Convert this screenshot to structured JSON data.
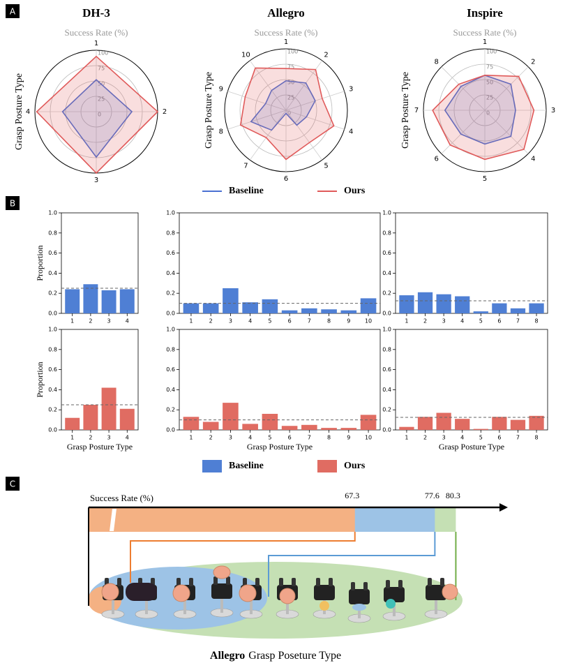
{
  "panel_labels": [
    "A",
    "B",
    "C"
  ],
  "legends": [
    [
      {
        "name": "Baseline",
        "color": "#4a70d2"
      },
      {
        "name": "Ours",
        "color": "#e05a5a"
      }
    ],
    [
      {
        "name": "Baseline",
        "color": "#4f7fd4"
      },
      {
        "name": "Ours",
        "color": "#e06c62"
      }
    ]
  ],
  "chart_data": [
    {
      "type": "radar",
      "title": "DH-3",
      "subtitle": "Success Rate (%)",
      "ylabel": "Grasp Posture Type",
      "categories": [
        "1",
        "2",
        "3",
        "4"
      ],
      "rlim": [
        0,
        100
      ],
      "rticks": [
        0,
        25,
        50,
        75,
        100
      ],
      "series": [
        {
          "color": "#4a70d2",
          "values": [
            52,
            58,
            74,
            55
          ]
        },
        {
          "color": "#e05a5a",
          "values": [
            90,
            100,
            100,
            97
          ]
        }
      ]
    },
    {
      "type": "radar",
      "title": "Allegro",
      "subtitle": "Success Rate (%)",
      "ylabel": "Grasp Posture Type",
      "categories": [
        "1",
        "2",
        "3",
        "4",
        "5",
        "6",
        "7",
        "8",
        "9",
        "10"
      ],
      "rlim": [
        0,
        100
      ],
      "rticks": [
        0,
        25,
        50,
        75,
        100
      ],
      "series": [
        {
          "color": "#4a70d2",
          "values": [
            48,
            55,
            50,
            35,
            30,
            5,
            40,
            60,
            35,
            40
          ]
        },
        {
          "color": "#e05a5a",
          "values": [
            68,
            82,
            62,
            82,
            65,
            80,
            55,
            78,
            70,
            85
          ]
        }
      ]
    },
    {
      "type": "radar",
      "title": "Inspire",
      "subtitle": "Success Rate (%)",
      "ylabel": "Grasp Posture Type",
      "categories": [
        "1",
        "2",
        "3",
        "4",
        "5",
        "6",
        "7",
        "8"
      ],
      "rlim": [
        0,
        100
      ],
      "rticks": [
        0,
        25,
        50,
        75,
        100
      ],
      "series": [
        {
          "color": "#4a70d2",
          "values": [
            57,
            60,
            50,
            60,
            55,
            55,
            65,
            55
          ]
        },
        {
          "color": "#e05a5a",
          "values": [
            57,
            78,
            80,
            90,
            80,
            80,
            85,
            60
          ]
        }
      ]
    },
    {
      "type": "bar",
      "ylabel": "Proportion",
      "categories": [
        "1",
        "2",
        "3",
        "4"
      ],
      "values": [
        0.24,
        0.29,
        0.23,
        0.24
      ],
      "color": "#4f7fd4",
      "reference": 0.25,
      "ylim": [
        0,
        1
      ],
      "yticks": [
        {
          "value": 0,
          "label": "0.0"
        },
        {
          "value": 0.2,
          "label": "0.2"
        },
        {
          "value": 0.4,
          "label": "0.4"
        },
        {
          "value": 0.6,
          "label": "0.6"
        },
        {
          "value": 0.8,
          "label": "0.8"
        },
        {
          "value": 1,
          "label": "1.0"
        }
      ]
    },
    {
      "type": "bar",
      "categories": [
        "1",
        "2",
        "3",
        "4",
        "5",
        "6",
        "7",
        "8",
        "9",
        "10"
      ],
      "values": [
        0.1,
        0.1,
        0.25,
        0.11,
        0.14,
        0.03,
        0.05,
        0.04,
        0.03,
        0.15
      ],
      "color": "#4f7fd4",
      "reference": 0.1,
      "ylim": [
        0,
        1
      ],
      "yticks": [
        {
          "value": 0,
          "label": "0.0"
        },
        {
          "value": 0.2,
          "label": "0.2"
        },
        {
          "value": 0.4,
          "label": "0.4"
        },
        {
          "value": 0.6,
          "label": "0.6"
        },
        {
          "value": 0.8,
          "label": "0.8"
        },
        {
          "value": 1,
          "label": "1.0"
        }
      ]
    },
    {
      "type": "bar",
      "categories": [
        "1",
        "2",
        "3",
        "4",
        "5",
        "6",
        "7",
        "8"
      ],
      "values": [
        0.18,
        0.21,
        0.19,
        0.17,
        0.02,
        0.1,
        0.05,
        0.1
      ],
      "color": "#4f7fd4",
      "reference": 0.125,
      "ylim": [
        0,
        1
      ],
      "yticks": [
        {
          "value": 0,
          "label": "0.0"
        },
        {
          "value": 0.2,
          "label": "0.2"
        },
        {
          "value": 0.4,
          "label": "0.4"
        },
        {
          "value": 0.6,
          "label": "0.6"
        },
        {
          "value": 0.8,
          "label": "0.8"
        },
        {
          "value": 1,
          "label": "1.0"
        }
      ]
    },
    {
      "type": "bar",
      "ylabel": "Proportion",
      "xlabel": "Grasp Posture Type",
      "categories": [
        "1",
        "2",
        "3",
        "4"
      ],
      "values": [
        0.12,
        0.25,
        0.42,
        0.21
      ],
      "color": "#e06c62",
      "reference": 0.25,
      "ylim": [
        0,
        1
      ],
      "yticks": [
        {
          "value": 0,
          "label": "0.0"
        },
        {
          "value": 0.2,
          "label": "0.2"
        },
        {
          "value": 0.4,
          "label": "0.4"
        },
        {
          "value": 0.6,
          "label": "0.6"
        },
        {
          "value": 0.8,
          "label": "0.8"
        },
        {
          "value": 1,
          "label": "1.0"
        }
      ]
    },
    {
      "type": "bar",
      "xlabel": "Grasp Posture Type",
      "categories": [
        "1",
        "2",
        "3",
        "4",
        "5",
        "6",
        "7",
        "8",
        "9",
        "10"
      ],
      "values": [
        0.13,
        0.08,
        0.27,
        0.06,
        0.16,
        0.04,
        0.05,
        0.02,
        0.02,
        0.15
      ],
      "color": "#e06c62",
      "reference": 0.1,
      "ylim": [
        0,
        1
      ],
      "yticks": [
        {
          "value": 0,
          "label": "0.0"
        },
        {
          "value": 0.2,
          "label": "0.2"
        },
        {
          "value": 0.4,
          "label": "0.4"
        },
        {
          "value": 0.6,
          "label": "0.6"
        },
        {
          "value": 0.8,
          "label": "0.8"
        },
        {
          "value": 1,
          "label": "1.0"
        }
      ]
    },
    {
      "type": "bar",
      "xlabel": "Grasp Posture Type",
      "categories": [
        "1",
        "2",
        "3",
        "4",
        "5",
        "6",
        "7",
        "8"
      ],
      "values": [
        0.03,
        0.13,
        0.17,
        0.11,
        0.01,
        0.13,
        0.1,
        0.14
      ],
      "color": "#e06c62",
      "reference": 0.125,
      "ylim": [
        0,
        1
      ],
      "yticks": [
        {
          "value": 0,
          "label": "0.0"
        },
        {
          "value": 0.2,
          "label": "0.2"
        },
        {
          "value": 0.4,
          "label": "0.4"
        },
        {
          "value": 0.6,
          "label": "0.6"
        },
        {
          "value": 0.8,
          "label": "0.8"
        },
        {
          "value": 1,
          "label": "1.0"
        }
      ]
    },
    {
      "type": "timeline",
      "xlabel": "Success Rate (%)",
      "values": [
        67.3,
        77.6,
        80.3
      ],
      "xlim": [
        33,
        87
      ],
      "colors": [
        "#f4b183",
        "#9dc3e6",
        "#c5e0b4"
      ],
      "line_colors": [
        "#ed7d31",
        "#5b9bd5",
        "#70ad47"
      ],
      "caption_bold": "Allegro",
      "caption": "Grasp Poseture Type"
    }
  ]
}
